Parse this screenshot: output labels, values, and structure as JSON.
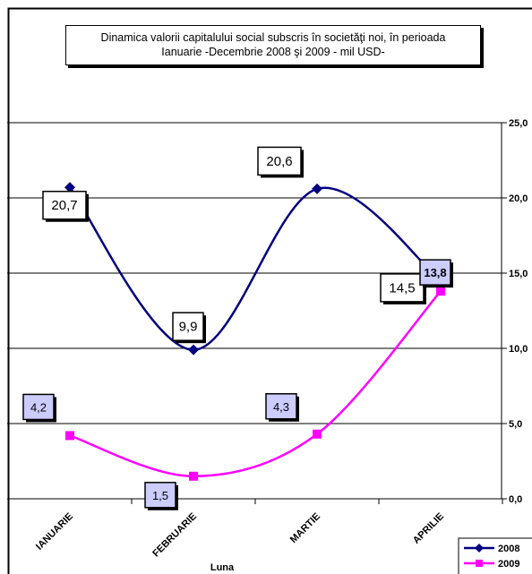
{
  "chart_data": {
    "type": "line",
    "title_line1": "Dinamica  valorii capitalului social subscris în societăţi noi,  în perioada",
    "title_line2": "Ianuarie -Decembrie 2008 şi 2009  - mil  USD-",
    "xlabel": "Luna",
    "categories": [
      "IANUARIE",
      "FEBRUARIE",
      "MARTIE",
      "APRILIE"
    ],
    "y_ticks": [
      "0,0",
      "5,0",
      "10,0",
      "15,0",
      "20,0",
      "25,0"
    ],
    "ylim": [
      0,
      25
    ],
    "grid": true,
    "legend_position": "bottom-right",
    "series": [
      {
        "name": "2008",
        "color": "#000080",
        "marker": "diamond",
        "values": [
          20.7,
          9.9,
          20.6,
          14.5
        ],
        "labels": [
          "20,7",
          "9,9",
          "20,6",
          "14,5"
        ]
      },
      {
        "name": "2009",
        "color": "#ff00ff",
        "marker": "square",
        "values": [
          4.2,
          1.5,
          4.3,
          13.8
        ],
        "labels": [
          "4,2",
          "1,5",
          "4,3",
          "13,8"
        ]
      }
    ]
  }
}
